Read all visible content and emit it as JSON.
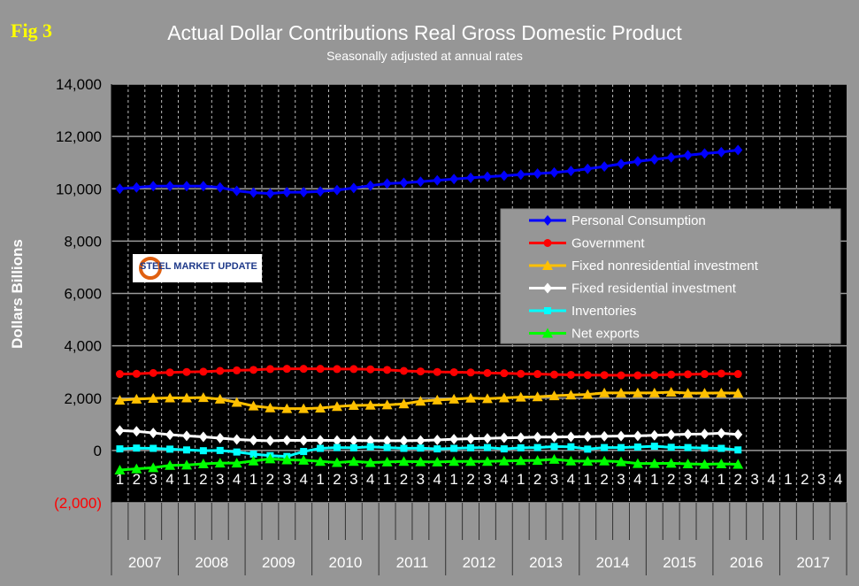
{
  "fig_label": "Fig 3",
  "logo_text": "STEEL MARKET UPDATE",
  "chart_data": {
    "type": "line",
    "title": "Actual Dollar Contributions Real Gross Domestic Product",
    "subtitle": "Seasonally adjusted at annual rates",
    "ylabel": "Dollars Billions",
    "ylim": [
      -2000,
      14000
    ],
    "yticks": [
      -2000,
      0,
      2000,
      4000,
      6000,
      8000,
      10000,
      12000,
      14000
    ],
    "ytick_labels": [
      "(2,000)",
      "0",
      "2,000",
      "4,000",
      "6,000",
      "8,000",
      "10,000",
      "12,000",
      "14,000"
    ],
    "years": [
      "2007",
      "2008",
      "2009",
      "2010",
      "2011",
      "2012",
      "2013",
      "2014",
      "2015",
      "2016",
      "2017"
    ],
    "quarter_labels": [
      "1",
      "2",
      "3",
      "4"
    ],
    "grid": "horizontal solid, vertical dashed",
    "legend_position": "right-center",
    "series": [
      {
        "name": "Personal Consumption",
        "color": "#0000ff",
        "marker": "diamond",
        "values": [
          10000,
          10050,
          10100,
          10100,
          10100,
          10100,
          10050,
          9920,
          9850,
          9820,
          9870,
          9870,
          9900,
          9950,
          10030,
          10120,
          10200,
          10230,
          10270,
          10320,
          10370,
          10420,
          10460,
          10500,
          10540,
          10580,
          10620,
          10680,
          10760,
          10850,
          10950,
          11050,
          11120,
          11200,
          11280,
          11350,
          11400,
          11480
        ]
      },
      {
        "name": "Government",
        "color": "#ff0000",
        "marker": "circle",
        "values": [
          2920,
          2930,
          2960,
          2980,
          3000,
          3010,
          3040,
          3060,
          3080,
          3110,
          3120,
          3120,
          3120,
          3110,
          3110,
          3100,
          3080,
          3040,
          3020,
          3000,
          2990,
          2980,
          2960,
          2950,
          2930,
          2920,
          2900,
          2890,
          2880,
          2880,
          2870,
          2870,
          2880,
          2900,
          2910,
          2920,
          2940,
          2920
        ]
      },
      {
        "name": "Fixed nonresidential investment",
        "color": "#ffc000",
        "marker": "triangle",
        "values": [
          1920,
          1960,
          1990,
          2010,
          2010,
          2020,
          1960,
          1840,
          1700,
          1630,
          1600,
          1600,
          1620,
          1680,
          1720,
          1730,
          1740,
          1780,
          1880,
          1930,
          1960,
          2000,
          1980,
          2010,
          2040,
          2050,
          2090,
          2120,
          2140,
          2200,
          2200,
          2200,
          2200,
          2230,
          2190,
          2190,
          2200,
          2190
        ]
      },
      {
        "name": "Fixed residential investment",
        "color": "#ffffff",
        "marker": "diamond",
        "values": [
          760,
          730,
          670,
          600,
          560,
          520,
          470,
          420,
          390,
          370,
          390,
          380,
          390,
          380,
          380,
          370,
          370,
          370,
          380,
          400,
          430,
          450,
          460,
          480,
          490,
          510,
          510,
          520,
          530,
          540,
          550,
          560,
          580,
          600,
          620,
          630,
          660,
          610
        ]
      },
      {
        "name": "Inventories",
        "color": "#00ffff",
        "marker": "square",
        "values": [
          60,
          90,
          80,
          50,
          20,
          -10,
          0,
          -60,
          -140,
          -200,
          -230,
          -40,
          80,
          110,
          100,
          140,
          110,
          80,
          90,
          60,
          80,
          100,
          110,
          60,
          100,
          110,
          150,
          140,
          50,
          110,
          110,
          130,
          160,
          120,
          110,
          90,
          80,
          20
        ]
      },
      {
        "name": "Net exports",
        "color": "#00ff00",
        "marker": "triangle",
        "values": [
          -750,
          -700,
          -660,
          -570,
          -560,
          -510,
          -480,
          -480,
          -400,
          -320,
          -360,
          -370,
          -420,
          -460,
          -420,
          -460,
          -440,
          -420,
          -430,
          -440,
          -420,
          -420,
          -420,
          -400,
          -390,
          -380,
          -340,
          -400,
          -410,
          -400,
          -430,
          -500,
          -500,
          -490,
          -510,
          -530,
          -510,
          -530
        ]
      }
    ]
  }
}
